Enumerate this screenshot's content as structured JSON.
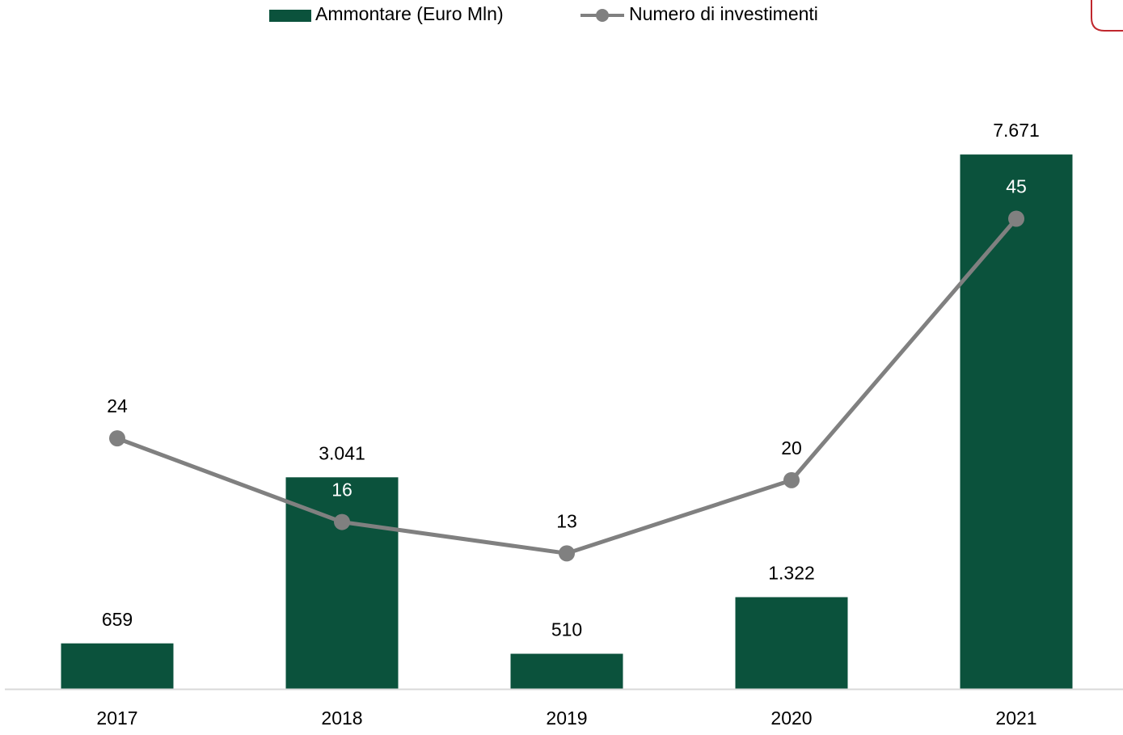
{
  "chart_data": {
    "type": "bar+line",
    "categories": [
      "2017",
      "2018",
      "2019",
      "2020",
      "2021"
    ],
    "series": [
      {
        "name": "Ammontare (Euro Mln)",
        "type": "bar",
        "color": "#0b523c",
        "axis": "y",
        "values": [
          659,
          3041,
          510,
          1322,
          7671
        ],
        "value_labels": [
          "659",
          "3.041",
          "510",
          "1.322",
          "7.671"
        ]
      },
      {
        "name": "Numero di investimenti",
        "type": "line",
        "color": "#808080",
        "axis": "y2",
        "values": [
          24,
          16,
          13,
          20,
          45
        ]
      }
    ],
    "ylim": [
      0,
      9000
    ],
    "y2lim": [
      0,
      60
    ],
    "legend": "top",
    "grid": false
  }
}
